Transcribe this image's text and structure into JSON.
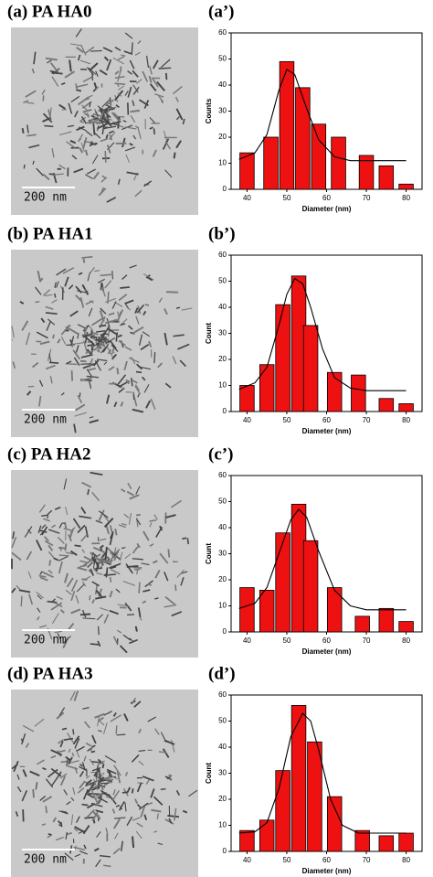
{
  "micrographs": [
    {
      "label": "(a) PA HA0",
      "scale": "200 nm"
    },
    {
      "label": "(b) PA HA1",
      "scale": "200 nm"
    },
    {
      "label": "(c) PA HA2",
      "scale": "200 nm"
    },
    {
      "label": "(d) PA HA3",
      "scale": "200 nm"
    }
  ],
  "chart_data": [
    {
      "type": "bar",
      "title": "(a’)",
      "x_label": "Diameter (nm)",
      "y_label": "Counts",
      "color": "#ee1111",
      "x": [
        40,
        46,
        50,
        54,
        58,
        63,
        70,
        75,
        80
      ],
      "values": [
        14,
        20,
        49,
        39,
        25,
        20,
        13,
        9,
        2
      ],
      "fit": {
        "x": [
          38,
          42,
          45,
          48,
          50,
          52,
          55,
          58,
          62,
          66,
          70,
          75,
          80
        ],
        "values": [
          11.5,
          14,
          21,
          38,
          46,
          44,
          31,
          19,
          12.5,
          11,
          11,
          11,
          11
        ]
      },
      "xlim": [
        36,
        84
      ],
      "ylim": [
        0,
        60
      ],
      "xticks": [
        40,
        50,
        60,
        70,
        80
      ],
      "yticks": [
        0,
        10,
        20,
        30,
        40,
        50,
        60
      ]
    },
    {
      "type": "bar",
      "title": "(b’)",
      "x_label": "Diameter (nm)",
      "y_label": "Count",
      "color": "#ee1111",
      "x": [
        40,
        45,
        49,
        53,
        56,
        62,
        68,
        75,
        80
      ],
      "values": [
        10,
        18,
        41,
        52,
        33,
        15,
        14,
        5,
        3
      ],
      "fit": {
        "x": [
          38,
          42,
          45,
          48,
          50,
          52,
          54,
          56,
          59,
          62,
          66,
          70,
          75,
          80
        ],
        "values": [
          8.5,
          11,
          17,
          33,
          45,
          51,
          49,
          40,
          24,
          13,
          9,
          8,
          8,
          8
        ]
      },
      "xlim": [
        36,
        84
      ],
      "ylim": [
        0,
        60
      ],
      "xticks": [
        40,
        50,
        60,
        70,
        80
      ],
      "yticks": [
        0,
        10,
        20,
        30,
        40,
        50,
        60
      ]
    },
    {
      "type": "bar",
      "title": "(c’)",
      "x_label": "Diameter (nm)",
      "y_label": "Count",
      "color": "#ee1111",
      "x": [
        40,
        45,
        49,
        53,
        56,
        62,
        69,
        75,
        80
      ],
      "values": [
        17,
        16,
        38,
        49,
        35,
        17,
        6,
        9,
        4
      ],
      "fit": {
        "x": [
          38,
          42,
          45,
          48,
          51,
          53,
          55,
          58,
          62,
          66,
          70,
          75,
          80
        ],
        "values": [
          9,
          11,
          17,
          30,
          43,
          47,
          44,
          31,
          16,
          10,
          8.5,
          8.5,
          8.5
        ]
      },
      "xlim": [
        36,
        84
      ],
      "ylim": [
        0,
        60
      ],
      "xticks": [
        40,
        50,
        60,
        70,
        80
      ],
      "yticks": [
        0,
        10,
        20,
        30,
        40,
        50,
        60
      ]
    },
    {
      "type": "bar",
      "title": "(d’)",
      "x_label": "Diameter (nm)",
      "y_label": "Count",
      "color": "#ee1111",
      "x": [
        40,
        45,
        49,
        53,
        57,
        62,
        69,
        75,
        80
      ],
      "values": [
        8,
        12,
        31,
        56,
        42,
        21,
        8,
        6,
        7
      ],
      "fit": {
        "x": [
          38,
          42,
          45,
          48,
          51,
          54,
          56,
          58,
          61,
          64,
          68,
          72,
          76,
          80
        ],
        "values": [
          7,
          7.5,
          11,
          24,
          44,
          53,
          50,
          39,
          20,
          10,
          7,
          7,
          7,
          7
        ]
      },
      "xlim": [
        36,
        84
      ],
      "ylim": [
        0,
        60
      ],
      "xticks": [
        40,
        50,
        60,
        70,
        80
      ],
      "yticks": [
        0,
        10,
        20,
        30,
        40,
        50,
        60
      ]
    }
  ]
}
